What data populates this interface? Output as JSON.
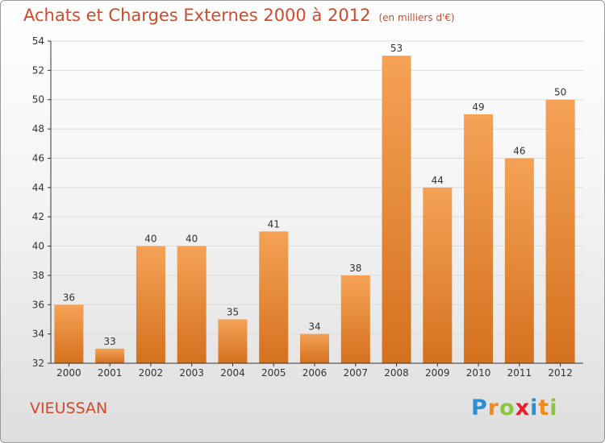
{
  "title": "Achats et Charges Externes 2000 à 2012",
  "unit": "(en milliers d'€)",
  "town": "VIEUSSAN",
  "logo": {
    "text": "Proxiti",
    "letters": [
      {
        "ch": "P",
        "color": "#2a8fd8"
      },
      {
        "ch": "r",
        "color": "#f08a1c"
      },
      {
        "ch": "o",
        "color": "#8cc63f"
      },
      {
        "ch": "x",
        "color": "#e8202a"
      },
      {
        "ch": "i",
        "color": "#2a8fd8"
      },
      {
        "ch": "t",
        "color": "#f08a1c"
      },
      {
        "ch": "i",
        "color": "#8cc63f"
      }
    ]
  },
  "colors": {
    "title": "#d2492b",
    "bar_top": "#f5a256",
    "bar_bottom": "#d4711f",
    "grid": "#dddddd",
    "axis": "#333333"
  },
  "chart_data": {
    "type": "bar",
    "categories": [
      "2000",
      "2001",
      "2002",
      "2003",
      "2004",
      "2005",
      "2006",
      "2007",
      "2008",
      "2009",
      "2010",
      "2011",
      "2012"
    ],
    "values": [
      36,
      33,
      40,
      40,
      35,
      41,
      34,
      38,
      53,
      44,
      49,
      46,
      50
    ],
    "ylim": [
      32,
      54
    ],
    "yticks": [
      32,
      34,
      36,
      38,
      40,
      42,
      44,
      46,
      48,
      50,
      52,
      54
    ],
    "grid": true,
    "xlabel": "",
    "ylabel": ""
  }
}
